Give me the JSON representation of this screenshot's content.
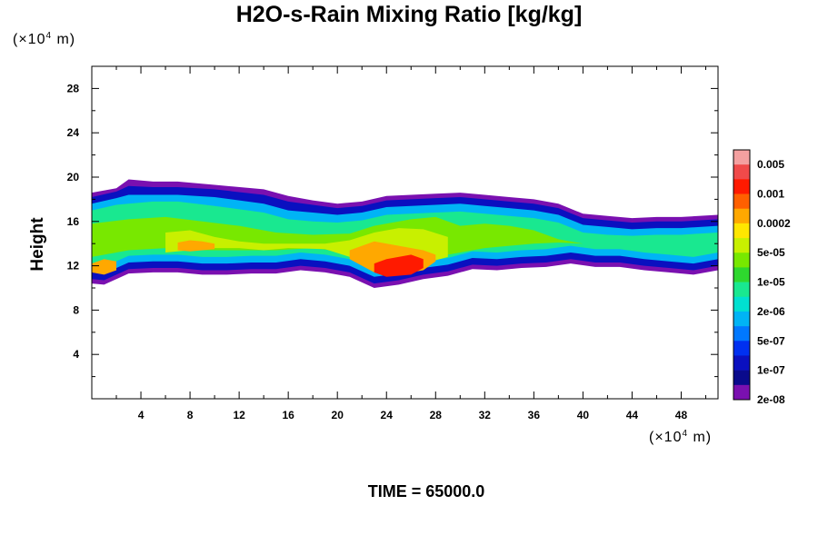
{
  "title": "H2O-s-Rain Mixing Ratio [kg/kg]",
  "time_label": "TIME = 65000.0",
  "chart_data": {
    "type": "heatmap",
    "title": "H2O-s-Rain Mixing Ratio [kg/kg]",
    "ylabel": "Height",
    "x_units_prefix": "(×10",
    "x_units_exp": "4",
    "x_units_suffix": " m)",
    "y_units_prefix": "(×10",
    "y_units_exp": "4",
    "y_units_suffix": " m)",
    "xlim": [
      0,
      51
    ],
    "ylim": [
      0,
      30
    ],
    "x_ticks": [
      4,
      8,
      12,
      16,
      20,
      24,
      28,
      32,
      36,
      40,
      44,
      48
    ],
    "y_ticks": [
      4,
      8,
      12,
      16,
      20,
      24,
      28
    ],
    "colorbar": {
      "labels": [
        "0.005",
        "0.001",
        "0.0002",
        "5e-05",
        "1e-05",
        "2e-06",
        "5e-07",
        "1e-07",
        "2e-08"
      ],
      "colors": [
        "#f4a0a0",
        "#f04a4a",
        "#ff1a00",
        "#ff6000",
        "#ffa800",
        "#ffe600",
        "#c8f000",
        "#78e800",
        "#2ed82e",
        "#19e890",
        "#00e0d0",
        "#00b4f5",
        "#0078ff",
        "#0030f0",
        "#0a10c0",
        "#0a0a8c",
        "#7a10b0"
      ]
    },
    "layers": [
      {
        "level": "2e-08",
        "color": "#7a10b0",
        "top": [
          [
            0,
            18.6
          ],
          [
            2,
            19.0
          ],
          [
            3,
            19.8
          ],
          [
            5,
            19.6
          ],
          [
            7,
            19.6
          ],
          [
            10,
            19.3
          ],
          [
            14,
            18.9
          ],
          [
            16,
            18.3
          ],
          [
            18,
            17.9
          ],
          [
            20,
            17.6
          ],
          [
            22,
            17.8
          ],
          [
            24,
            18.3
          ],
          [
            26,
            18.4
          ],
          [
            28,
            18.5
          ],
          [
            30,
            18.6
          ],
          [
            32,
            18.4
          ],
          [
            34,
            18.2
          ],
          [
            36,
            18.0
          ],
          [
            38,
            17.6
          ],
          [
            40,
            16.7
          ],
          [
            42,
            16.5
          ],
          [
            44,
            16.3
          ],
          [
            46,
            16.4
          ],
          [
            48,
            16.4
          ],
          [
            51,
            16.6
          ]
        ],
        "bottom": [
          [
            0,
            10.4
          ],
          [
            1,
            10.3
          ],
          [
            3,
            11.3
          ],
          [
            5,
            11.4
          ],
          [
            7,
            11.4
          ],
          [
            9,
            11.2
          ],
          [
            11,
            11.2
          ],
          [
            13,
            11.3
          ],
          [
            15,
            11.3
          ],
          [
            17,
            11.6
          ],
          [
            19,
            11.4
          ],
          [
            21,
            11.0
          ],
          [
            23,
            10.0
          ],
          [
            25,
            10.3
          ],
          [
            27,
            10.8
          ],
          [
            29,
            11.1
          ],
          [
            31,
            11.7
          ],
          [
            33,
            11.6
          ],
          [
            35,
            11.8
          ],
          [
            37,
            11.9
          ],
          [
            39,
            12.2
          ],
          [
            41,
            11.9
          ],
          [
            43,
            11.9
          ],
          [
            45,
            11.6
          ],
          [
            47,
            11.4
          ],
          [
            49,
            11.2
          ],
          [
            51,
            11.6
          ]
        ]
      },
      {
        "level": "2e-07",
        "color": "#0a10c0",
        "top": [
          [
            0,
            18.2
          ],
          [
            2,
            18.7
          ],
          [
            3,
            19.2
          ],
          [
            5,
            19.1
          ],
          [
            7,
            19.1
          ],
          [
            10,
            18.9
          ],
          [
            14,
            18.4
          ],
          [
            16,
            17.8
          ],
          [
            18,
            17.5
          ],
          [
            20,
            17.2
          ],
          [
            22,
            17.4
          ],
          [
            24,
            17.9
          ],
          [
            26,
            18.0
          ],
          [
            28,
            18.1
          ],
          [
            30,
            18.2
          ],
          [
            32,
            18.0
          ],
          [
            34,
            17.8
          ],
          [
            36,
            17.6
          ],
          [
            38,
            17.2
          ],
          [
            40,
            16.3
          ],
          [
            42,
            16.1
          ],
          [
            44,
            15.9
          ],
          [
            46,
            16.0
          ],
          [
            48,
            16.0
          ],
          [
            51,
            16.2
          ]
        ],
        "bottom": [
          [
            0,
            10.8
          ],
          [
            1,
            10.7
          ],
          [
            3,
            11.7
          ],
          [
            5,
            11.8
          ],
          [
            7,
            11.8
          ],
          [
            9,
            11.6
          ],
          [
            11,
            11.6
          ],
          [
            13,
            11.7
          ],
          [
            15,
            11.7
          ],
          [
            17,
            12.0
          ],
          [
            19,
            11.8
          ],
          [
            21,
            11.4
          ],
          [
            23,
            10.4
          ],
          [
            25,
            10.7
          ],
          [
            27,
            11.2
          ],
          [
            29,
            11.5
          ],
          [
            31,
            12.1
          ],
          [
            33,
            12.0
          ],
          [
            35,
            12.2
          ],
          [
            37,
            12.3
          ],
          [
            39,
            12.6
          ],
          [
            41,
            12.3
          ],
          [
            43,
            12.3
          ],
          [
            45,
            12.0
          ],
          [
            47,
            11.8
          ],
          [
            49,
            11.6
          ],
          [
            51,
            12.0
          ]
        ]
      },
      {
        "level": "5e-07",
        "color": "#00b4f5",
        "top": [
          [
            0,
            17.6
          ],
          [
            2,
            18.1
          ],
          [
            3,
            18.4
          ],
          [
            5,
            18.4
          ],
          [
            7,
            18.4
          ],
          [
            10,
            18.2
          ],
          [
            14,
            17.6
          ],
          [
            16,
            17.0
          ],
          [
            18,
            16.8
          ],
          [
            20,
            16.6
          ],
          [
            22,
            16.8
          ],
          [
            24,
            17.3
          ],
          [
            26,
            17.4
          ],
          [
            28,
            17.5
          ],
          [
            30,
            17.6
          ],
          [
            32,
            17.4
          ],
          [
            34,
            17.2
          ],
          [
            36,
            17.0
          ],
          [
            38,
            16.6
          ],
          [
            40,
            15.7
          ],
          [
            42,
            15.5
          ],
          [
            44,
            15.3
          ],
          [
            46,
            15.4
          ],
          [
            48,
            15.4
          ],
          [
            51,
            15.6
          ]
        ],
        "bottom": [
          [
            0,
            11.4
          ],
          [
            1,
            11.3
          ],
          [
            3,
            12.3
          ],
          [
            5,
            12.4
          ],
          [
            7,
            12.4
          ],
          [
            9,
            12.2
          ],
          [
            11,
            12.2
          ],
          [
            13,
            12.3
          ],
          [
            15,
            12.3
          ],
          [
            17,
            12.6
          ],
          [
            19,
            12.4
          ],
          [
            21,
            12.0
          ],
          [
            23,
            11.0
          ],
          [
            25,
            11.3
          ],
          [
            27,
            11.8
          ],
          [
            29,
            12.1
          ],
          [
            31,
            12.7
          ],
          [
            33,
            12.6
          ],
          [
            35,
            12.8
          ],
          [
            37,
            12.9
          ],
          [
            39,
            13.2
          ],
          [
            41,
            12.9
          ],
          [
            43,
            12.9
          ],
          [
            45,
            12.6
          ],
          [
            47,
            12.4
          ],
          [
            49,
            12.2
          ],
          [
            51,
            12.6
          ]
        ]
      },
      {
        "level": "2e-06",
        "color": "#19e890",
        "top": [
          [
            0,
            17.0
          ],
          [
            2,
            17.5
          ],
          [
            3,
            17.6
          ],
          [
            5,
            17.8
          ],
          [
            7,
            17.8
          ],
          [
            10,
            17.4
          ],
          [
            14,
            16.8
          ],
          [
            16,
            16.2
          ],
          [
            18,
            16.0
          ],
          [
            20,
            15.9
          ],
          [
            22,
            16.1
          ],
          [
            24,
            16.6
          ],
          [
            26,
            16.7
          ],
          [
            28,
            16.8
          ],
          [
            30,
            16.9
          ],
          [
            32,
            16.7
          ],
          [
            34,
            16.5
          ],
          [
            36,
            16.3
          ],
          [
            38,
            15.9
          ],
          [
            40,
            15.0
          ],
          [
            42,
            14.8
          ],
          [
            44,
            14.7
          ],
          [
            46,
            14.8
          ],
          [
            48,
            14.8
          ],
          [
            51,
            15.0
          ]
        ],
        "bottom": [
          [
            0,
            12.0
          ],
          [
            1,
            11.9
          ],
          [
            3,
            12.9
          ],
          [
            5,
            13.0
          ],
          [
            7,
            13.0
          ],
          [
            9,
            12.8
          ],
          [
            11,
            12.8
          ],
          [
            13,
            12.9
          ],
          [
            15,
            12.9
          ],
          [
            17,
            13.2
          ],
          [
            19,
            13.0
          ],
          [
            21,
            12.6
          ],
          [
            23,
            11.6
          ],
          [
            25,
            11.9
          ],
          [
            27,
            12.4
          ],
          [
            29,
            12.7
          ],
          [
            31,
            13.3
          ],
          [
            33,
            13.2
          ],
          [
            35,
            13.4
          ],
          [
            37,
            13.5
          ],
          [
            39,
            13.8
          ],
          [
            41,
            13.5
          ],
          [
            43,
            13.5
          ],
          [
            45,
            13.2
          ],
          [
            47,
            13.0
          ],
          [
            49,
            12.8
          ],
          [
            51,
            13.2
          ]
        ]
      },
      {
        "level": "1e-05",
        "color": "#78e800",
        "top": [
          [
            0,
            15.8
          ],
          [
            3,
            16.2
          ],
          [
            6,
            16.4
          ],
          [
            9,
            16.0
          ],
          [
            12,
            15.6
          ],
          [
            15,
            15.0
          ],
          [
            18,
            14.8
          ],
          [
            21,
            14.9
          ],
          [
            23,
            15.6
          ],
          [
            26,
            16.2
          ],
          [
            28,
            16.4
          ],
          [
            30,
            15.6
          ],
          [
            32,
            15.8
          ],
          [
            34,
            15.6
          ],
          [
            36,
            15.2
          ],
          [
            38,
            14.4
          ],
          [
            40,
            14.0
          ]
        ],
        "bottom": [
          [
            0,
            12.8
          ],
          [
            3,
            13.4
          ],
          [
            6,
            13.6
          ],
          [
            9,
            13.4
          ],
          [
            12,
            13.4
          ],
          [
            15,
            13.4
          ],
          [
            18,
            13.6
          ],
          [
            21,
            13.2
          ],
          [
            23,
            12.2
          ],
          [
            26,
            12.4
          ],
          [
            28,
            12.8
          ],
          [
            30,
            13.2
          ],
          [
            32,
            13.6
          ],
          [
            34,
            13.8
          ],
          [
            36,
            14.0
          ],
          [
            38,
            14.1
          ],
          [
            40,
            14.0
          ]
        ]
      },
      {
        "level": "5e-05",
        "color": "#c8f000",
        "top": [
          [
            6,
            15.0
          ],
          [
            8,
            15.2
          ],
          [
            10,
            14.6
          ],
          [
            12,
            14.2
          ],
          [
            14,
            14.0
          ],
          [
            16,
            14.0
          ],
          [
            19,
            14.0
          ],
          [
            21,
            14.3
          ],
          [
            23,
            15.0
          ],
          [
            25,
            15.4
          ],
          [
            27,
            15.3
          ],
          [
            29,
            14.6
          ]
        ],
        "bottom": [
          [
            6,
            13.2
          ],
          [
            8,
            13.4
          ],
          [
            10,
            13.6
          ],
          [
            12,
            13.6
          ],
          [
            14,
            13.4
          ],
          [
            16,
            13.6
          ],
          [
            19,
            13.5
          ],
          [
            21,
            12.8
          ],
          [
            23,
            11.8
          ],
          [
            25,
            11.8
          ],
          [
            27,
            12.2
          ],
          [
            29,
            12.8
          ]
        ]
      },
      {
        "level": "0.0002",
        "color": "#ffa800",
        "top": [
          [
            0,
            12.2
          ],
          [
            1,
            12.6
          ],
          [
            2,
            12.4
          ]
        ],
        "bottom": [
          [
            0,
            11.4
          ],
          [
            1,
            11.2
          ],
          [
            2,
            11.6
          ]
        ]
      },
      {
        "level": "0.0002",
        "color": "#ffa800",
        "top": [
          [
            7,
            14.1
          ],
          [
            8,
            14.3
          ],
          [
            9,
            14.2
          ],
          [
            10,
            14.0
          ]
        ],
        "bottom": [
          [
            7,
            13.4
          ],
          [
            8,
            13.3
          ],
          [
            9,
            13.4
          ],
          [
            10,
            13.5
          ]
        ]
      },
      {
        "level": "0.0002",
        "color": "#ffa800",
        "top": [
          [
            21,
            13.4
          ],
          [
            23,
            14.2
          ],
          [
            25,
            13.8
          ],
          [
            27,
            13.4
          ],
          [
            28,
            13.0
          ]
        ],
        "bottom": [
          [
            21,
            12.6
          ],
          [
            23,
            11.4
          ],
          [
            25,
            11.2
          ],
          [
            27,
            11.6
          ],
          [
            28,
            12.4
          ]
        ]
      },
      {
        "level": "0.001",
        "color": "#ff1a00",
        "top": [
          [
            23,
            12.2
          ],
          [
            24,
            12.6
          ],
          [
            26,
            13.0
          ],
          [
            27,
            12.6
          ]
        ],
        "bottom": [
          [
            23,
            11.4
          ],
          [
            24,
            11.0
          ],
          [
            26,
            11.2
          ],
          [
            27,
            11.8
          ]
        ]
      }
    ]
  }
}
